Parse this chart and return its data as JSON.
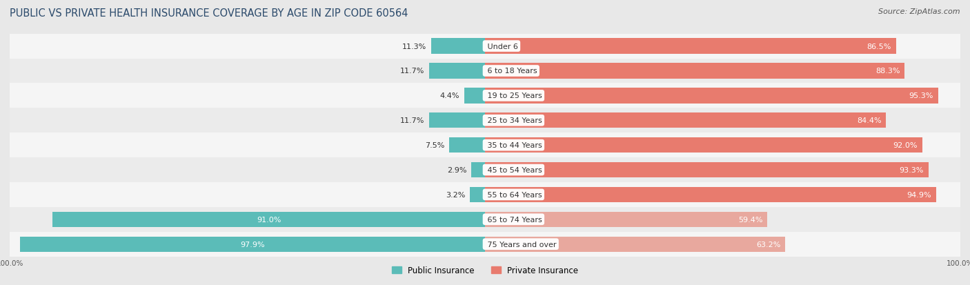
{
  "title": "PUBLIC VS PRIVATE HEALTH INSURANCE COVERAGE BY AGE IN ZIP CODE 60564",
  "source": "Source: ZipAtlas.com",
  "categories": [
    "Under 6",
    "6 to 18 Years",
    "19 to 25 Years",
    "25 to 34 Years",
    "35 to 44 Years",
    "45 to 54 Years",
    "55 to 64 Years",
    "65 to 74 Years",
    "75 Years and over"
  ],
  "public_values": [
    11.3,
    11.7,
    4.4,
    11.7,
    7.5,
    2.9,
    3.2,
    91.0,
    97.9
  ],
  "private_values": [
    86.5,
    88.3,
    95.3,
    84.4,
    92.0,
    93.3,
    94.9,
    59.4,
    63.2
  ],
  "public_color": "#5bbcb8",
  "private_color_high": "#e87b6e",
  "private_color_low": "#e8a89e",
  "bg_color": "#e8e8e8",
  "row_bg_even": "#f5f5f5",
  "row_bg_odd": "#ebebeb",
  "bar_height": 0.62,
  "title_fontsize": 10.5,
  "source_fontsize": 8,
  "label_fontsize": 8,
  "category_fontsize": 8,
  "legend_fontsize": 8.5,
  "private_threshold": 75
}
